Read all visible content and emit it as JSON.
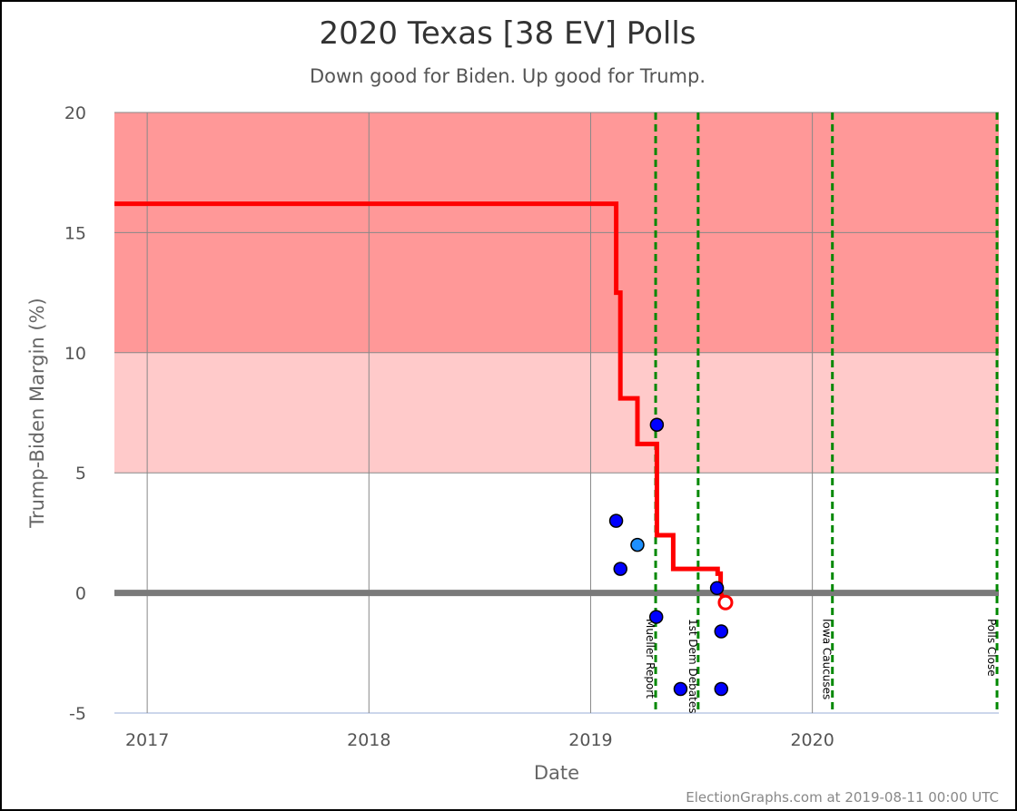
{
  "chart_data": {
    "type": "line",
    "title": "2020 Texas [38 EV] Polls",
    "subtitle": "Down good for Biden. Up good for Trump.",
    "xlabel": "Date",
    "ylabel": "Trump-Biden Margin (%)",
    "ylim": [
      -5,
      20
    ],
    "xlim": [
      "2016-11-08",
      "2020-11-03"
    ],
    "yticks": [
      -5,
      0,
      5,
      10,
      15,
      20
    ],
    "xticks": [
      {
        "label": "2017",
        "date": "2017-01-01"
      },
      {
        "label": "2018",
        "date": "2018-01-01"
      },
      {
        "label": "2019",
        "date": "2019-01-01"
      },
      {
        "label": "2020",
        "date": "2020-01-01"
      }
    ],
    "bands": [
      {
        "from": 10,
        "to": 20,
        "color": "#ff9898"
      },
      {
        "from": 5,
        "to": 10,
        "color": "#ffcaca"
      }
    ],
    "zero_line_color": "#7a7a7a",
    "average_line": {
      "color": "#ff0000",
      "points": [
        [
          "2016-11-08",
          16.2
        ],
        [
          "2019-02-12",
          16.2
        ],
        [
          "2019-02-12",
          12.5
        ],
        [
          "2019-02-19",
          12.5
        ],
        [
          "2019-02-19",
          8.1
        ],
        [
          "2019-03-19",
          8.1
        ],
        [
          "2019-03-19",
          6.2
        ],
        [
          "2019-04-20",
          6.2
        ],
        [
          "2019-04-20",
          2.4
        ],
        [
          "2019-05-17",
          2.4
        ],
        [
          "2019-05-17",
          1.0
        ],
        [
          "2019-07-29",
          1.0
        ],
        [
          "2019-07-29",
          0.8
        ],
        [
          "2019-08-03",
          0.8
        ],
        [
          "2019-08-03",
          0.0
        ],
        [
          "2019-08-11",
          -0.4
        ]
      ],
      "current": {
        "date": "2019-08-11",
        "value": -0.4
      }
    },
    "polls": [
      {
        "date": "2019-02-12",
        "value": 3.0,
        "color": "#0000ff"
      },
      {
        "date": "2019-02-19",
        "value": 1.0,
        "color": "#0000ff"
      },
      {
        "date": "2019-03-19",
        "value": 2.0,
        "color": "#1e90ff"
      },
      {
        "date": "2019-04-20",
        "value": 7.0,
        "color": "#0000ff"
      },
      {
        "date": "2019-04-19",
        "value": -1.0,
        "color": "#0000ff"
      },
      {
        "date": "2019-05-29",
        "value": -4.0,
        "color": "#0000ff"
      },
      {
        "date": "2019-07-28",
        "value": 0.2,
        "color": "#0000ff"
      },
      {
        "date": "2019-08-04",
        "value": -1.6,
        "color": "#0000ff"
      },
      {
        "date": "2019-08-04",
        "value": -4.0,
        "color": "#0000ff"
      }
    ],
    "events": [
      {
        "label": "Mueller Report",
        "date": "2019-04-18"
      },
      {
        "label": "1st Dem Debates",
        "date": "2019-06-27"
      },
      {
        "label": "Iowa Caucuses",
        "date": "2020-02-03"
      },
      {
        "label": "Polls Close",
        "date": "2020-11-03"
      }
    ],
    "event_color": "#008800",
    "grid": true
  },
  "footer": {
    "credit": "ElectionGraphs.com at 2019-08-11 00:00 UTC"
  }
}
